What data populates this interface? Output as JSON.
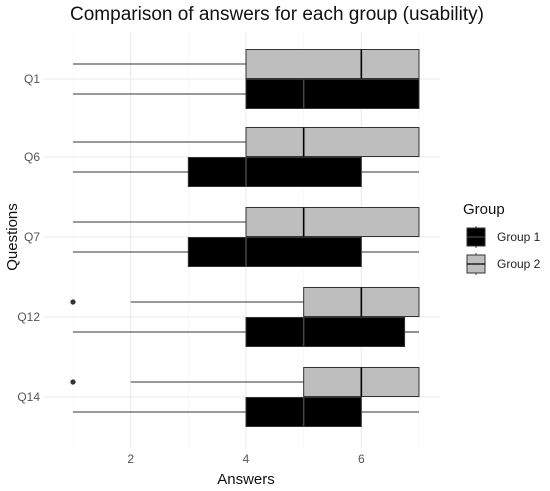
{
  "chart_data": {
    "type": "boxplot",
    "orientation": "horizontal",
    "title": "Comparison of answers for each group (usability)",
    "xlabel": "Answers",
    "ylabel": "Questions",
    "xlim": [
      1,
      7
    ],
    "x_ticks": [
      2,
      4,
      6
    ],
    "categories": [
      "Q1",
      "Q6",
      "Q7",
      "Q12",
      "Q14"
    ],
    "grid": true,
    "legend_title": "Group",
    "legend_position": "right",
    "series": [
      {
        "name": "Group 1",
        "color": "#000000",
        "median_color": "#444444",
        "boxes": [
          {
            "category": "Q1",
            "min": 1,
            "q1": 4,
            "median": 5,
            "q3": 7,
            "max": 7,
            "outliers": []
          },
          {
            "category": "Q6",
            "min": 1,
            "q1": 3,
            "median": 4,
            "q3": 6,
            "max": 7,
            "outliers": []
          },
          {
            "category": "Q7",
            "min": 1,
            "q1": 3,
            "median": 4,
            "q3": 6,
            "max": 7,
            "outliers": []
          },
          {
            "category": "Q12",
            "min": 1,
            "q1": 4,
            "median": 5,
            "q3": 6.75,
            "max": 7,
            "outliers": []
          },
          {
            "category": "Q14",
            "min": 1,
            "q1": 4,
            "median": 5,
            "q3": 6,
            "max": 7,
            "outliers": []
          }
        ]
      },
      {
        "name": "Group 2",
        "color": "#bebebe",
        "median_color": "#000000",
        "boxes": [
          {
            "category": "Q1",
            "min": 1,
            "q1": 4,
            "median": 6,
            "q3": 7,
            "max": 7,
            "outliers": []
          },
          {
            "category": "Q6",
            "min": 1,
            "q1": 4,
            "median": 5,
            "q3": 7,
            "max": 7,
            "outliers": []
          },
          {
            "category": "Q7",
            "min": 1,
            "q1": 4,
            "median": 5,
            "q3": 7,
            "max": 7,
            "outliers": []
          },
          {
            "category": "Q12",
            "min": 2,
            "q1": 5,
            "median": 6,
            "q3": 7,
            "max": 7,
            "outliers": [
              1
            ]
          },
          {
            "category": "Q14",
            "min": 2,
            "q1": 5,
            "median": 6,
            "q3": 7,
            "max": 7,
            "outliers": [
              1
            ]
          }
        ]
      }
    ]
  }
}
